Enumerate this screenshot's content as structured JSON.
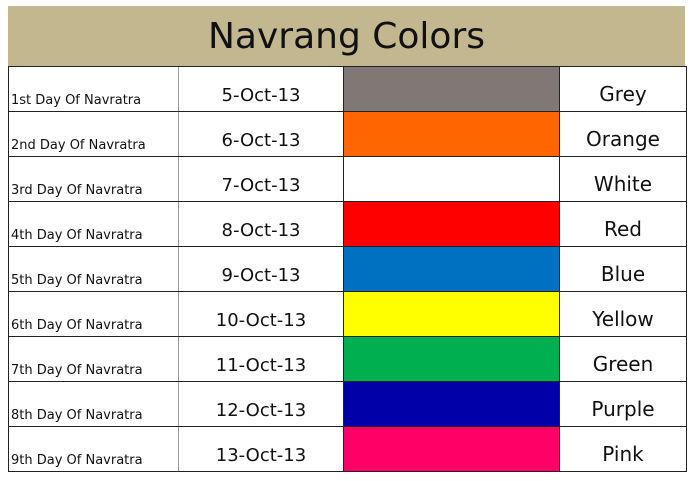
{
  "title": "Navrang Colors",
  "rows": [
    {
      "day": "1st Day Of Navratra",
      "date": "5-Oct-13",
      "color_name": "Grey",
      "swatch": "#7f7874"
    },
    {
      "day": "2nd Day Of Navratra",
      "date": "6-Oct-13",
      "color_name": "Orange",
      "swatch": "#ff6600"
    },
    {
      "day": "3rd Day Of Navratra",
      "date": "7-Oct-13",
      "color_name": "White",
      "swatch": "#ffffff"
    },
    {
      "day": "4th Day Of Navratra",
      "date": "8-Oct-13",
      "color_name": "Red",
      "swatch": "#ff0000"
    },
    {
      "day": "5th Day Of Navratra",
      "date": "9-Oct-13",
      "color_name": "Blue",
      "swatch": "#0070c0"
    },
    {
      "day": "6th Day Of Navratra",
      "date": "10-Oct-13",
      "color_name": "Yellow",
      "swatch": "#ffff00"
    },
    {
      "day": "7th Day Of Navratra",
      "date": "11-Oct-13",
      "color_name": "Green",
      "swatch": "#00b050"
    },
    {
      "day": "8th Day Of Navratra",
      "date": "12-Oct-13",
      "color_name": "Purple",
      "swatch": "#0000a8"
    },
    {
      "day": "9th Day Of Navratra",
      "date": "13-Oct-13",
      "color_name": "Pink",
      "swatch": "#ff0066"
    }
  ]
}
